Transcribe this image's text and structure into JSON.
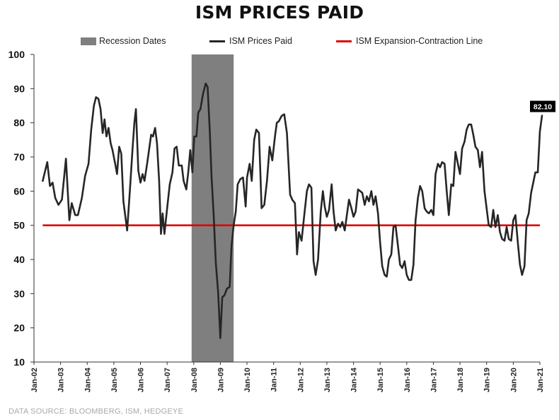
{
  "chart_data": {
    "type": "line",
    "title": "ISM PRICES PAID",
    "source": "DATA SOURCE: BLOOMBERG, ISM, HEDGEYE",
    "legend": [
      {
        "name": "Recession Dates",
        "kind": "band",
        "color": "#7f7f7f"
      },
      {
        "name": "ISM Prices Paid",
        "kind": "line",
        "color": "#262626"
      },
      {
        "name": "ISM Expansion-Contraction Line",
        "kind": "line",
        "color": "#e00000"
      }
    ],
    "legend_position": "top",
    "ylim": [
      10,
      100
    ],
    "yticks": [
      10,
      20,
      30,
      40,
      50,
      60,
      70,
      80,
      90,
      100
    ],
    "xlim": [
      2002.0,
      2021.0
    ],
    "xticks": [
      {
        "label": "Jan-02",
        "x": 2002
      },
      {
        "label": "Jan-03",
        "x": 2003
      },
      {
        "label": "Jan-04",
        "x": 2004
      },
      {
        "label": "Jan-05",
        "x": 2005
      },
      {
        "label": "Jan-06",
        "x": 2006
      },
      {
        "label": "Jan-07",
        "x": 2007
      },
      {
        "label": "Jan-08",
        "x": 2008
      },
      {
        "label": "Jan-09",
        "x": 2009
      },
      {
        "label": "Jan-10",
        "x": 2010
      },
      {
        "label": "Jan-11",
        "x": 2011
      },
      {
        "label": "Jan-12",
        "x": 2012
      },
      {
        "label": "Jan-13",
        "x": 2013
      },
      {
        "label": "Jan-14",
        "x": 2014
      },
      {
        "label": "Jan-15",
        "x": 2015
      },
      {
        "label": "Jan-16",
        "x": 2016
      },
      {
        "label": "Jan-17",
        "x": 2017
      },
      {
        "label": "Jan-18",
        "x": 2018
      },
      {
        "label": "Jan-19",
        "x": 2019
      },
      {
        "label": "Jan-20",
        "x": 2020
      },
      {
        "label": "Jan-21",
        "x": 2021
      }
    ],
    "grid": false,
    "recession_band": {
      "start": 2007.92,
      "end": 2009.5
    },
    "reference_line": {
      "name": "ISM Expansion-Contraction Line",
      "value": 50,
      "color": "#e00000"
    },
    "last_value_label": "82.10",
    "series": [
      {
        "name": "ISM Prices Paid",
        "color": "#262626",
        "points": [
          [
            2002.33,
            63
          ],
          [
            2002.5,
            68.5
          ],
          [
            2002.6,
            61.5
          ],
          [
            2002.7,
            62.5
          ],
          [
            2002.8,
            58
          ],
          [
            2002.92,
            56
          ],
          [
            2003.05,
            57.5
          ],
          [
            2003.2,
            69.5
          ],
          [
            2003.33,
            51.5
          ],
          [
            2003.42,
            56.5
          ],
          [
            2003.55,
            53
          ],
          [
            2003.65,
            53
          ],
          [
            2003.8,
            58
          ],
          [
            2003.92,
            64.5
          ],
          [
            2004.05,
            68
          ],
          [
            2004.15,
            78
          ],
          [
            2004.25,
            85
          ],
          [
            2004.33,
            87.5
          ],
          [
            2004.42,
            87
          ],
          [
            2004.5,
            84
          ],
          [
            2004.58,
            77
          ],
          [
            2004.65,
            81
          ],
          [
            2004.72,
            76
          ],
          [
            2004.8,
            78.5
          ],
          [
            2004.88,
            74
          ],
          [
            2004.95,
            72
          ],
          [
            2005.05,
            68
          ],
          [
            2005.12,
            65
          ],
          [
            2005.2,
            73
          ],
          [
            2005.28,
            71
          ],
          [
            2005.36,
            57
          ],
          [
            2005.5,
            48.5
          ],
          [
            2005.6,
            60
          ],
          [
            2005.7,
            72
          ],
          [
            2005.77,
            80
          ],
          [
            2005.83,
            84
          ],
          [
            2005.92,
            66
          ],
          [
            2006.0,
            62.5
          ],
          [
            2006.08,
            65
          ],
          [
            2006.15,
            63
          ],
          [
            2006.25,
            68
          ],
          [
            2006.4,
            76.5
          ],
          [
            2006.47,
            76
          ],
          [
            2006.55,
            78.5
          ],
          [
            2006.62,
            74
          ],
          [
            2006.7,
            63
          ],
          [
            2006.77,
            47.5
          ],
          [
            2006.83,
            53.5
          ],
          [
            2006.9,
            47.5
          ],
          [
            2007.0,
            55
          ],
          [
            2007.1,
            62
          ],
          [
            2007.2,
            65.5
          ],
          [
            2007.28,
            72.5
          ],
          [
            2007.36,
            73
          ],
          [
            2007.44,
            67.5
          ],
          [
            2007.55,
            67.5
          ],
          [
            2007.62,
            63
          ],
          [
            2007.72,
            60.5
          ],
          [
            2007.8,
            66
          ],
          [
            2007.87,
            72
          ],
          [
            2007.95,
            65.5
          ],
          [
            2008.02,
            76
          ],
          [
            2008.1,
            76
          ],
          [
            2008.17,
            83
          ],
          [
            2008.25,
            84
          ],
          [
            2008.35,
            88.5
          ],
          [
            2008.45,
            91.5
          ],
          [
            2008.52,
            90.5
          ],
          [
            2008.6,
            78
          ],
          [
            2008.67,
            64
          ],
          [
            2008.75,
            53
          ],
          [
            2008.83,
            39
          ],
          [
            2008.92,
            30
          ],
          [
            2009.0,
            17
          ],
          [
            2009.07,
            29
          ],
          [
            2009.15,
            29.5
          ],
          [
            2009.25,
            31.5
          ],
          [
            2009.35,
            32
          ],
          [
            2009.42,
            44
          ],
          [
            2009.5,
            50
          ],
          [
            2009.58,
            54
          ],
          [
            2009.65,
            62
          ],
          [
            2009.75,
            63.5
          ],
          [
            2009.85,
            64
          ],
          [
            2009.95,
            55.5
          ],
          [
            2010.0,
            64
          ],
          [
            2010.1,
            68
          ],
          [
            2010.18,
            63
          ],
          [
            2010.27,
            75
          ],
          [
            2010.35,
            78
          ],
          [
            2010.45,
            77
          ],
          [
            2010.55,
            55
          ],
          [
            2010.65,
            56
          ],
          [
            2010.75,
            63
          ],
          [
            2010.85,
            73
          ],
          [
            2010.95,
            69
          ],
          [
            2011.05,
            76
          ],
          [
            2011.12,
            80
          ],
          [
            2011.2,
            80.5
          ],
          [
            2011.3,
            82
          ],
          [
            2011.4,
            82.5
          ],
          [
            2011.5,
            77
          ],
          [
            2011.62,
            59
          ],
          [
            2011.7,
            57.5
          ],
          [
            2011.8,
            56.5
          ],
          [
            2011.88,
            41.5
          ],
          [
            2011.95,
            48
          ],
          [
            2012.05,
            45.5
          ],
          [
            2012.15,
            53
          ],
          [
            2012.25,
            60
          ],
          [
            2012.33,
            62
          ],
          [
            2012.42,
            61
          ],
          [
            2012.5,
            39.5
          ],
          [
            2012.58,
            35.5
          ],
          [
            2012.67,
            40
          ],
          [
            2012.77,
            54
          ],
          [
            2012.85,
            60
          ],
          [
            2012.92,
            55.5
          ],
          [
            2013.0,
            52.5
          ],
          [
            2013.08,
            54.5
          ],
          [
            2013.18,
            62
          ],
          [
            2013.25,
            54
          ],
          [
            2013.33,
            48.5
          ],
          [
            2013.42,
            50.5
          ],
          [
            2013.5,
            49.5
          ],
          [
            2013.58,
            51
          ],
          [
            2013.67,
            48.5
          ],
          [
            2013.75,
            53
          ],
          [
            2013.83,
            57.5
          ],
          [
            2013.92,
            55
          ],
          [
            2014.0,
            52.5
          ],
          [
            2014.08,
            54
          ],
          [
            2014.17,
            60.5
          ],
          [
            2014.25,
            60
          ],
          [
            2014.33,
            59.5
          ],
          [
            2014.42,
            56
          ],
          [
            2014.5,
            58.5
          ],
          [
            2014.58,
            57
          ],
          [
            2014.67,
            60
          ],
          [
            2014.75,
            56
          ],
          [
            2014.83,
            58.5
          ],
          [
            2014.92,
            53.5
          ],
          [
            2015.0,
            45
          ],
          [
            2015.08,
            38
          ],
          [
            2015.17,
            35.5
          ],
          [
            2015.25,
            35
          ],
          [
            2015.33,
            40
          ],
          [
            2015.42,
            41.5
          ],
          [
            2015.5,
            49.5
          ],
          [
            2015.58,
            50
          ],
          [
            2015.67,
            44
          ],
          [
            2015.75,
            38.5
          ],
          [
            2015.83,
            37.5
          ],
          [
            2015.92,
            39.5
          ],
          [
            2016.0,
            35.5
          ],
          [
            2016.08,
            34
          ],
          [
            2016.17,
            34
          ],
          [
            2016.25,
            38.5
          ],
          [
            2016.33,
            51.5
          ],
          [
            2016.42,
            58
          ],
          [
            2016.5,
            61.5
          ],
          [
            2016.58,
            60
          ],
          [
            2016.67,
            55
          ],
          [
            2016.75,
            54
          ],
          [
            2016.83,
            53.5
          ],
          [
            2016.92,
            54.5
          ],
          [
            2017.0,
            53
          ],
          [
            2017.08,
            65
          ],
          [
            2017.17,
            68
          ],
          [
            2017.25,
            67
          ],
          [
            2017.33,
            68.5
          ],
          [
            2017.42,
            68
          ],
          [
            2017.5,
            60
          ],
          [
            2017.58,
            53
          ],
          [
            2017.67,
            62
          ],
          [
            2017.75,
            61.5
          ],
          [
            2017.83,
            71.5
          ],
          [
            2017.92,
            68
          ],
          [
            2018.0,
            65
          ],
          [
            2018.08,
            72.5
          ],
          [
            2018.17,
            74.5
          ],
          [
            2018.25,
            78
          ],
          [
            2018.33,
            79.5
          ],
          [
            2018.42,
            79.5
          ],
          [
            2018.5,
            76.5
          ],
          [
            2018.58,
            73
          ],
          [
            2018.67,
            72
          ],
          [
            2018.75,
            67
          ],
          [
            2018.83,
            71.5
          ],
          [
            2018.92,
            60
          ],
          [
            2019.0,
            55
          ],
          [
            2019.08,
            50
          ],
          [
            2019.17,
            49.5
          ],
          [
            2019.25,
            54.5
          ],
          [
            2019.33,
            49.5
          ],
          [
            2019.42,
            53
          ],
          [
            2019.5,
            48
          ],
          [
            2019.58,
            46
          ],
          [
            2019.67,
            45.5
          ],
          [
            2019.75,
            49.5
          ],
          [
            2019.83,
            46
          ],
          [
            2019.92,
            45.5
          ],
          [
            2020.0,
            51.5
          ],
          [
            2020.08,
            53
          ],
          [
            2020.17,
            45
          ],
          [
            2020.25,
            38.5
          ],
          [
            2020.33,
            35.5
          ],
          [
            2020.42,
            38
          ],
          [
            2020.5,
            51.5
          ],
          [
            2020.58,
            53.5
          ],
          [
            2020.67,
            59.5
          ],
          [
            2020.75,
            62.5
          ],
          [
            2020.83,
            65.5
          ],
          [
            2020.92,
            65.5
          ],
          [
            2021.0,
            77.5
          ],
          [
            2021.08,
            82.1
          ]
        ]
      }
    ]
  }
}
